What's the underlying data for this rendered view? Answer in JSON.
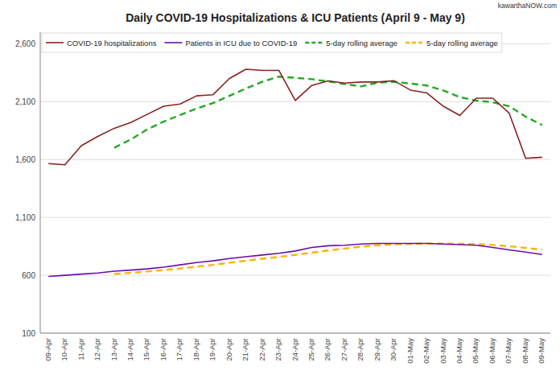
{
  "chart_data": {
    "type": "line",
    "title": "Daily COVID-19 Hospitalizations & ICU Patients (April 9 - May 9)",
    "annotations": [
      {
        "text": "kawarthaNOW.com"
      }
    ],
    "categories": [
      "09-Apr",
      "10-Apr",
      "11-Apr",
      "12-Apr",
      "13-Apr",
      "14-Apr",
      "15-Apr",
      "16-Apr",
      "17-Apr",
      "18-Apr",
      "19-Apr",
      "20-Apr",
      "21-Apr",
      "22-Apr",
      "23-Apr",
      "24-Apr",
      "25-Apr",
      "26-Apr",
      "27-Apr",
      "28-Apr",
      "29-Apr",
      "30-Apr",
      "01-May",
      "02-May",
      "03-May",
      "04-May",
      "05-May",
      "06-May",
      "07-May",
      "08-May",
      "09-May"
    ],
    "series": [
      {
        "name": "COVID-19 hospitalizations",
        "color": "#8B2020",
        "line_style": "solid",
        "values": [
          1565,
          1555,
          1720,
          1800,
          1870,
          1920,
          1990,
          2060,
          2080,
          2150,
          2160,
          2300,
          2380,
          2370,
          2370,
          2110,
          2240,
          2280,
          2260,
          2270,
          2270,
          2280,
          2200,
          2175,
          2060,
          1980,
          2130,
          2130,
          2000,
          1610,
          1620
        ]
      },
      {
        "name": "Patients in ICU due to COVID-19",
        "color": "#6A0DAD",
        "line_style": "solid",
        "values": [
          590,
          600,
          610,
          620,
          635,
          645,
          655,
          670,
          690,
          710,
          725,
          745,
          760,
          775,
          790,
          810,
          840,
          855,
          860,
          870,
          875,
          875,
          875,
          875,
          870,
          865,
          860,
          840,
          820,
          800,
          780
        ]
      },
      {
        "name": "5-day rolling average",
        "color": "#22AA22",
        "line_style": "dashed",
        "values": [
          null,
          null,
          null,
          null,
          1702,
          1773,
          1860,
          1928,
          1984,
          2040,
          2088,
          2150,
          2214,
          2272,
          2316,
          2306,
          2294,
          2274,
          2252,
          2232,
          2264,
          2272,
          2256,
          2239,
          2197,
          2139,
          2109,
          2095,
          2060,
          1970,
          1898
        ]
      },
      {
        "name": "5-day rolling average",
        "color": "#FFB300",
        "line_style": "dashed",
        "values": [
          null,
          null,
          null,
          null,
          611,
          622,
          633,
          645,
          659,
          674,
          690,
          708,
          726,
          743,
          759,
          776,
          795,
          814,
          831,
          847,
          860,
          867,
          871,
          874,
          874,
          872,
          869,
          862,
          851,
          837,
          820
        ]
      }
    ],
    "ylim": [
      100,
      2700
    ],
    "yticks": [
      100,
      600,
      {
        "value": 1100,
        "label": "1,100"
      },
      {
        "value": 1600,
        "label": "1,600"
      },
      {
        "value": 2100,
        "label": "2,100"
      },
      {
        "value": 2600,
        "label": "2,600"
      }
    ],
    "grid": true,
    "legend": "upper left"
  }
}
